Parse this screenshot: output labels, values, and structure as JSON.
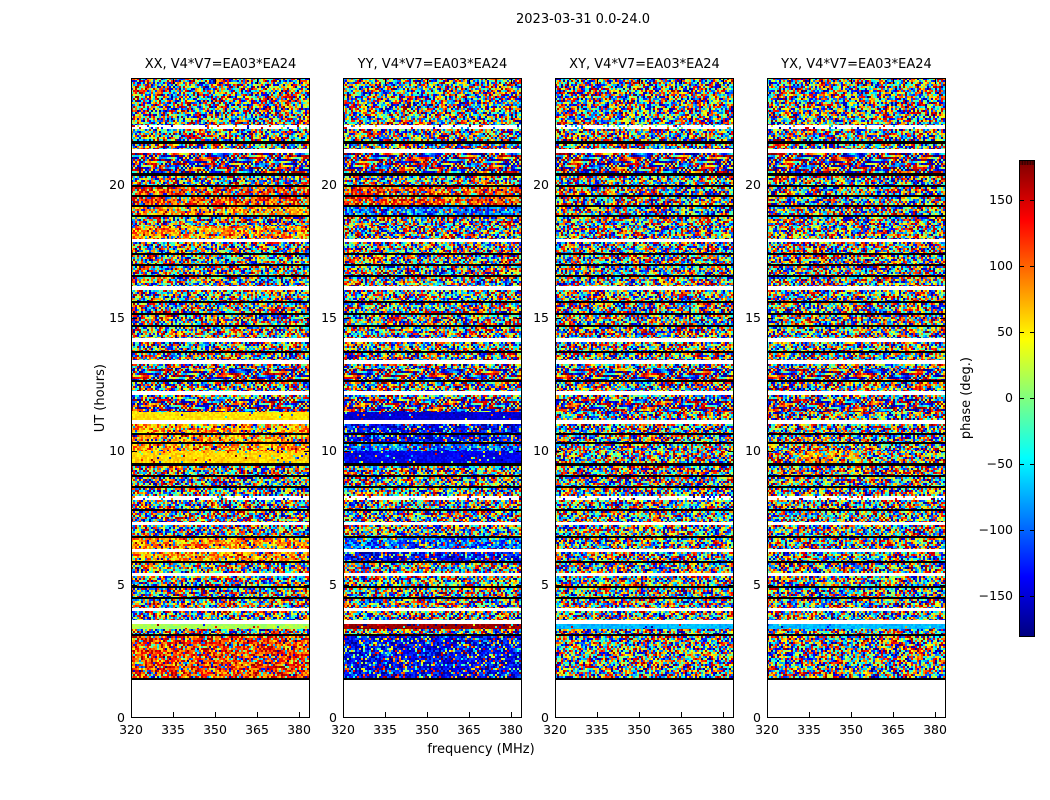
{
  "title": "2023-03-31 0.0-24.0",
  "xlabel": "frequency (MHz)",
  "ylabel": "UT (hours)",
  "panels": [
    {
      "pol": "XX",
      "title": "XX, V4*V7=EA03*EA24"
    },
    {
      "pol": "YY",
      "title": "YY, V4*V7=EA03*EA24"
    },
    {
      "pol": "XY",
      "title": "XY, V4*V7=EA03*EA24"
    },
    {
      "pol": "YX",
      "title": "YX, V4*V7=EA03*EA24"
    }
  ],
  "axes": {
    "x_tick_labels": [
      "320",
      "335",
      "350",
      "365",
      "380"
    ],
    "x_tick_values": [
      320,
      335,
      350,
      365,
      380
    ],
    "y_tick_labels": [
      "0",
      "5",
      "10",
      "15",
      "20"
    ],
    "y_tick_values": [
      0,
      5,
      10,
      15,
      20
    ],
    "x_range_mhz": [
      320,
      388
    ],
    "y_range_hours": [
      0,
      24
    ]
  },
  "colorbar": {
    "label": "phase (deg.)",
    "tick_labels": [
      "150",
      "100",
      "50",
      "0",
      "−50",
      "−100",
      "−150"
    ],
    "tick_values": [
      150,
      100,
      50,
      0,
      -50,
      -100,
      -150
    ],
    "vmin": -180,
    "vmax": 180,
    "colormap": "jet"
  },
  "chart_data": {
    "type": "heatmap",
    "title": "2023-03-31 0.0-24.0",
    "xlabel": "frequency (MHz)",
    "ylabel": "UT (hours)",
    "value_label": "phase (deg.)",
    "value_range": [
      -180,
      180
    ],
    "colormap": "jet",
    "x_range_mhz": [
      320,
      388
    ],
    "y_range_hours": [
      0,
      24
    ],
    "x_ticks": [
      320,
      335,
      350,
      365,
      380
    ],
    "y_ticks": [
      0,
      5,
      10,
      15,
      20
    ],
    "colorbar_ticks": [
      150,
      100,
      50,
      0,
      -50,
      -100,
      -150
    ],
    "panel_titles": [
      "XX, V4*V7=EA03*EA24",
      "YY, V4*V7=EA03*EA24",
      "XY, V4*V7=EA03*EA24",
      "YX, V4*V7=EA03*EA24"
    ],
    "polarizations": [
      "XX",
      "YY",
      "XY",
      "YX"
    ],
    "baseline": "V4*V7=EA03*EA24",
    "features": [
      "Random phase noise (full -180..180 range) over most scans in all four panels",
      "Phase-coherent band at UT ~9.9-11.6: XX yellow/orange, YY deep blue, XY/YX noise-like",
      "Block at UT ~1.6-3.3: XX orange/red dominated, YY blue dominated, XY/YX noise-like",
      "Thin coherent line at UT ~3.7: XX pale green, YY dark red, XY/YX cyan",
      "Warm-tinted streaks near UT ~19-20 in XX and YY",
      "Ornate phase-wrap loop texture rows near UT ~20.7-21.5, ~13.0-13.5 and ~11.8-12.4",
      "White scan-boundary gaps and thin black separators between integrations",
      "No data (white) below UT ~1.4"
    ],
    "row_segments_note": "segments from top (UT=24) to bottom (UT=0); [height_px, kind, per-pol tint]; kinds: noise|sparse|white|black|pattern|pattern2|band|band2|empty; band values are base phase in degrees",
    "row_segments": [
      [
        47,
        "noise",
        {}
      ],
      [
        4,
        "sparse",
        {}
      ],
      [
        12,
        "noise",
        {}
      ],
      [
        3,
        "black",
        {}
      ],
      [
        5,
        "noise",
        {}
      ],
      [
        4,
        "white",
        {}
      ],
      [
        10,
        "pattern",
        {}
      ],
      [
        10,
        "pattern2",
        {}
      ],
      [
        3,
        "black",
        {}
      ],
      [
        9,
        "noise",
        {}
      ],
      [
        2,
        "black",
        {}
      ],
      [
        8,
        "noise",
        {
          "XX": "hot",
          "YY": "hot"
        }
      ],
      [
        2,
        "black",
        {}
      ],
      [
        8,
        "noise",
        {
          "XX": "hot",
          "YY": "hot"
        }
      ],
      [
        2,
        "black",
        {}
      ],
      [
        8,
        "noise",
        {
          "XX": "warm",
          "YY": "blue"
        }
      ],
      [
        2,
        "black",
        {}
      ],
      [
        9,
        "noise",
        {}
      ],
      [
        13,
        "noise",
        {
          "XX": "warm"
        }
      ],
      [
        3,
        "white",
        {}
      ],
      [
        11,
        "noise",
        {}
      ],
      [
        2,
        "black",
        {}
      ],
      [
        9,
        "noise",
        {}
      ],
      [
        2,
        "black",
        {}
      ],
      [
        9,
        "noise",
        {}
      ],
      [
        2,
        "black",
        {}
      ],
      [
        9,
        "noise",
        {}
      ],
      [
        4,
        "white",
        {}
      ],
      [
        11,
        "noise",
        {}
      ],
      [
        2,
        "black",
        {}
      ],
      [
        10,
        "noise",
        {}
      ],
      [
        2,
        "black",
        {}
      ],
      [
        10,
        "noise",
        {}
      ],
      [
        2,
        "black",
        {}
      ],
      [
        11,
        "noise",
        {}
      ],
      [
        4,
        "white",
        {}
      ],
      [
        9,
        "noise",
        {}
      ],
      [
        2,
        "black",
        {}
      ],
      [
        7,
        "noise",
        {}
      ],
      [
        4,
        "white",
        {}
      ],
      [
        5,
        "noise",
        {}
      ],
      [
        11,
        "pattern",
        {}
      ],
      [
        2,
        "black",
        {}
      ],
      [
        9,
        "noise",
        {}
      ],
      [
        4,
        "white",
        {}
      ],
      [
        4,
        "noise",
        {}
      ],
      [
        13,
        "pattern2",
        {}
      ],
      [
        8,
        "band",
        {
          "XX": 55,
          "YY": -150
        }
      ],
      [
        4,
        "white",
        {}
      ],
      [
        9,
        "noise",
        {
          "XX": "warm",
          "YY": "deepblue"
        }
      ],
      [
        2,
        "black",
        {}
      ],
      [
        7,
        "noise",
        {
          "XX": "warm",
          "YY": "deepblue"
        }
      ],
      [
        2,
        "black",
        {}
      ],
      [
        7,
        "noise",
        {
          "XX": "warm",
          "YY": "blue"
        }
      ],
      [
        12,
        "band2",
        {
          "XX": 60,
          "YY": -140,
          "YX_patch": 1
        }
      ],
      [
        3,
        "black",
        {}
      ],
      [
        9,
        "noise",
        {}
      ],
      [
        2,
        "black",
        {}
      ],
      [
        9,
        "noise",
        {}
      ],
      [
        2,
        "black",
        {}
      ],
      [
        8,
        "noise",
        {}
      ],
      [
        4,
        "sparse",
        {}
      ],
      [
        9,
        "noise",
        {}
      ],
      [
        2,
        "black",
        {}
      ],
      [
        11,
        "noise",
        {}
      ],
      [
        3,
        "white",
        {}
      ],
      [
        11,
        "noise",
        {}
      ],
      [
        2,
        "black",
        {}
      ],
      [
        11,
        "noise",
        {
          "XX": "warm",
          "YY": "blue"
        }
      ],
      [
        3,
        "white",
        {}
      ],
      [
        9,
        "noise",
        {
          "XX": "warm",
          "YY": "deepblue"
        }
      ],
      [
        2,
        "black",
        {}
      ],
      [
        10,
        "noise",
        {}
      ],
      [
        3,
        "white",
        {}
      ],
      [
        10,
        "noise",
        {}
      ],
      [
        2,
        "black",
        {}
      ],
      [
        9,
        "noise",
        {}
      ],
      [
        2,
        "black",
        {}
      ],
      [
        9,
        "noise",
        {}
      ],
      [
        3,
        "white",
        {}
      ],
      [
        9,
        "noise",
        {}
      ],
      [
        4,
        "white",
        {}
      ],
      [
        5,
        "band",
        {
          "XX": 15,
          "YY": 170,
          "XY": -70,
          "YX": -70
        }
      ],
      [
        5,
        "noise",
        {}
      ],
      [
        2,
        "black",
        {}
      ],
      [
        42,
        "noise",
        {
          "XX": "hot",
          "YY": "deepblue"
        }
      ],
      [
        2,
        "black",
        {}
      ],
      [
        38,
        "empty",
        {}
      ]
    ]
  }
}
